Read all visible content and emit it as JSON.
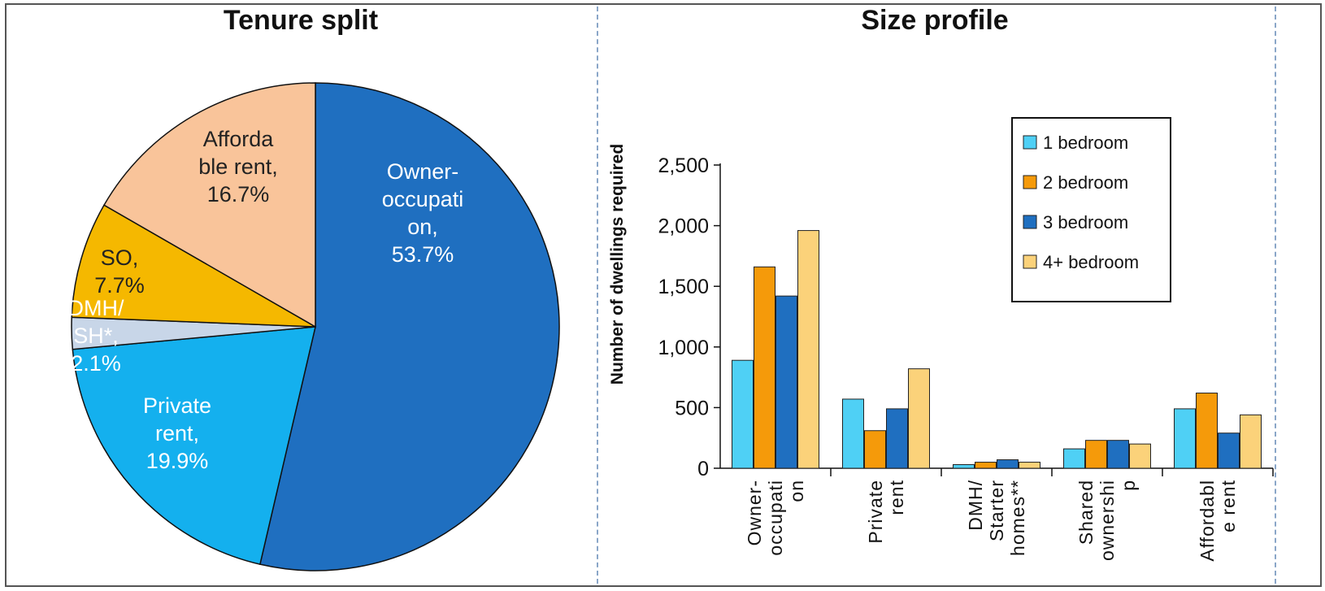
{
  "charts_titles": {
    "left": "Tenure split",
    "right": "Size profile"
  },
  "chart_data": [
    {
      "type": "pie",
      "title": "Tenure split",
      "slices": [
        {
          "label": "Owner-occupation",
          "display": [
            "Owner-",
            "occupati",
            "on,",
            "53.7%"
          ],
          "value": 53.7,
          "color": "#1f6fc0",
          "text_color": "#ffffff"
        },
        {
          "label": "Private rent",
          "display": [
            "Private",
            "rent,",
            "19.9%"
          ],
          "value": 19.9,
          "color": "#14b0ee",
          "text_color": "#ffffff"
        },
        {
          "label": "DMH/SH*",
          "display": [
            "DMH/",
            "SH*,",
            "2.1%"
          ],
          "value": 2.1,
          "color": "#c8d6e8",
          "text_color": "#ffffff"
        },
        {
          "label": "SO",
          "display": [
            "SO,",
            "7.7%"
          ],
          "value": 7.7,
          "color": "#f5b800",
          "text_color": "#222222"
        },
        {
          "label": "Affordable rent",
          "display": [
            "Afforda",
            "ble rent,",
            "16.7%"
          ],
          "value": 16.7,
          "color": "#f9c49a",
          "text_color": "#222222"
        }
      ]
    },
    {
      "type": "bar",
      "title": "Size profile",
      "ylabel": "Number of dwellings required",
      "ylim": [
        0,
        2500
      ],
      "yticks": [
        0,
        500,
        1000,
        1500,
        2000,
        2500
      ],
      "ytick_labels": [
        "0",
        "500",
        "1,000",
        "1,500",
        "2,000",
        "2,500"
      ],
      "categories": [
        "Owner-occupation",
        "Private rent",
        "DMH/ Starter homes**",
        "Shared ownership",
        "Affordable rent"
      ],
      "category_label_lines": [
        [
          "Owner-",
          "occupati",
          "on"
        ],
        [
          "Private",
          "rent"
        ],
        [
          "DMH/",
          "Starter",
          "homes**"
        ],
        [
          "Shared",
          "ownershi",
          "p"
        ],
        [
          "Affordabl",
          "e rent"
        ]
      ],
      "series": [
        {
          "name": "1 bedroom",
          "color": "#4fd0f5",
          "values": [
            890,
            570,
            30,
            160,
            490
          ]
        },
        {
          "name": "2 bedroom",
          "color": "#f59a0a",
          "values": [
            1660,
            310,
            50,
            230,
            620
          ]
        },
        {
          "name": "3 bedroom",
          "color": "#1f6fc0",
          "values": [
            1420,
            490,
            70,
            230,
            290
          ]
        },
        {
          "name": "4+ bedroom",
          "color": "#fbd27a",
          "values": [
            1960,
            820,
            50,
            200,
            440
          ]
        }
      ],
      "legend": "top-right"
    }
  ]
}
